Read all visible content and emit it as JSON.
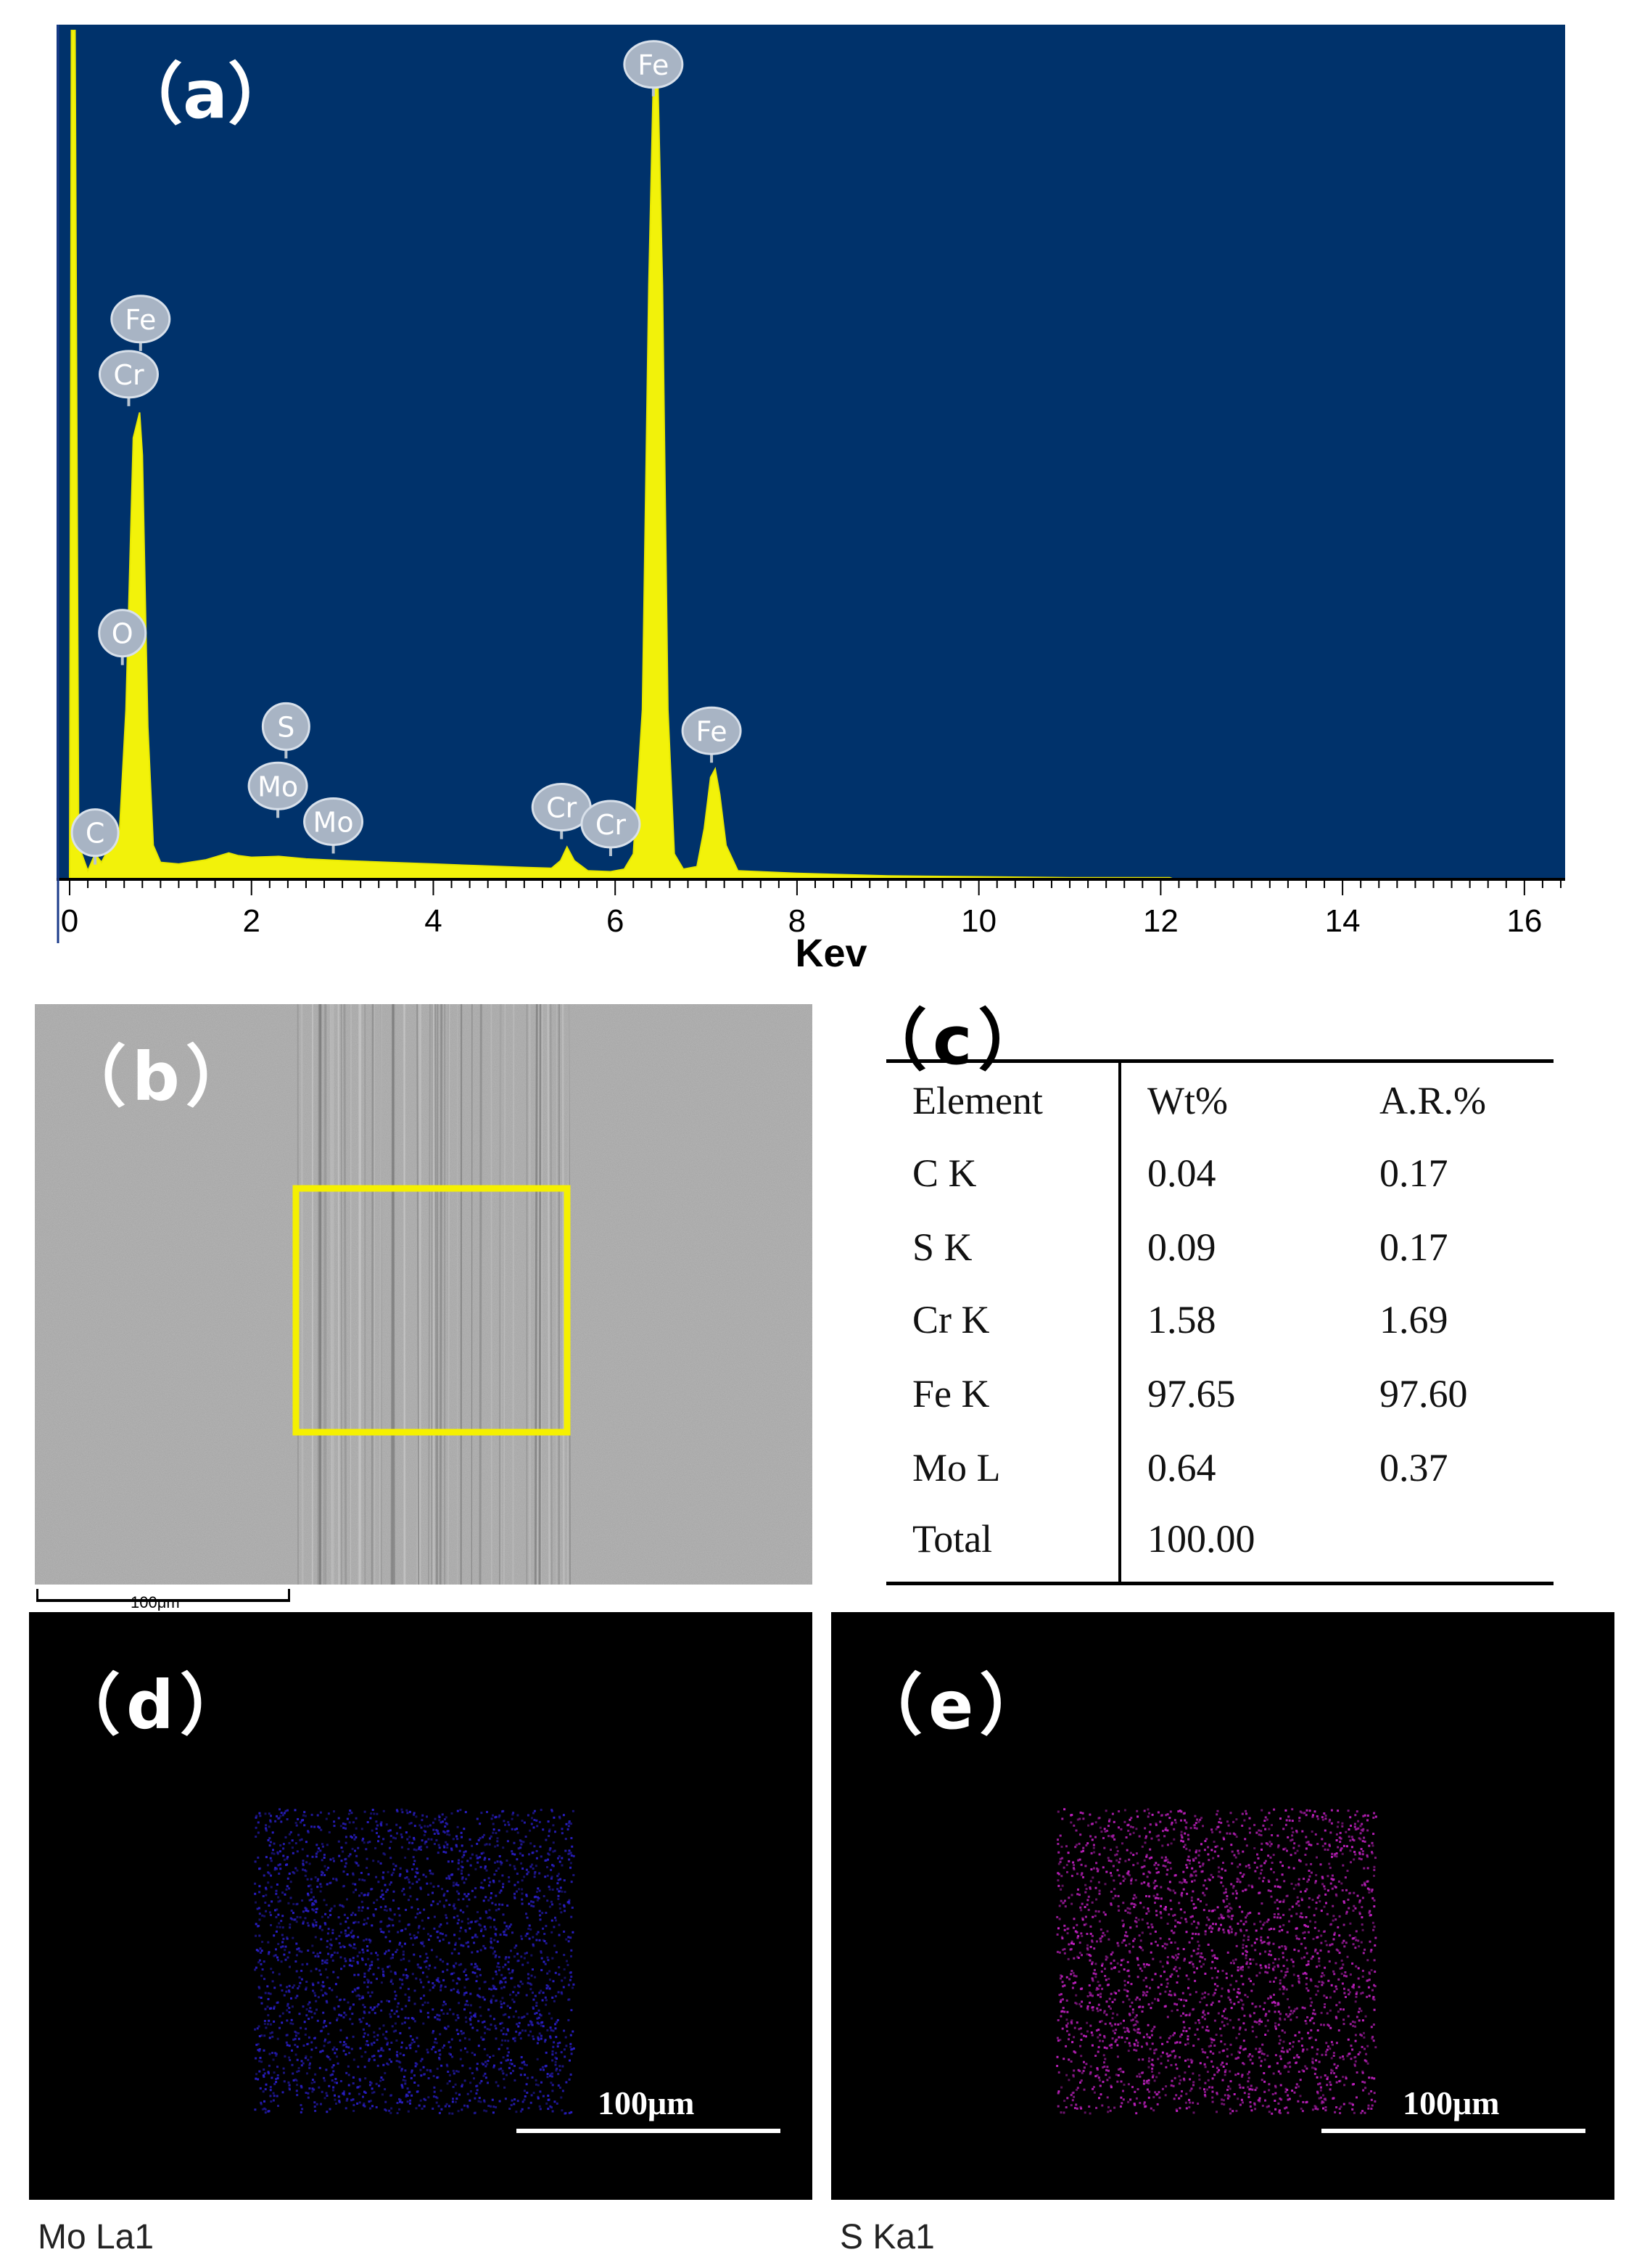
{
  "chart_data": {
    "type": "area",
    "panel_label": "（a）",
    "xlabel": "Kev",
    "ylabel": "",
    "xlim": [
      0,
      16.4
    ],
    "ylim": [
      0,
      100
    ],
    "x_ticks": [
      "0",
      "2",
      "4",
      "6",
      "8",
      "10",
      "12",
      "14",
      "16"
    ],
    "colors": {
      "background": "#00326b",
      "spectrum": "#f2f20a",
      "axis": "#ffffff"
    },
    "spectrum": [
      [
        0,
        0
      ],
      [
        0.02,
        100
      ],
      [
        0.06,
        100
      ],
      [
        0.1,
        4
      ],
      [
        0.2,
        1
      ],
      [
        0.28,
        3
      ],
      [
        0.35,
        2
      ],
      [
        0.45,
        4
      ],
      [
        0.55,
        6
      ],
      [
        0.62,
        20
      ],
      [
        0.7,
        52
      ],
      [
        0.77,
        55
      ],
      [
        0.8,
        50
      ],
      [
        0.86,
        18
      ],
      [
        0.92,
        4
      ],
      [
        1.0,
        2
      ],
      [
        1.2,
        1.8
      ],
      [
        1.5,
        2.3
      ],
      [
        1.75,
        3.1
      ],
      [
        1.85,
        2.8
      ],
      [
        2.0,
        2.6
      ],
      [
        2.3,
        2.7
      ],
      [
        2.6,
        2.4
      ],
      [
        3.0,
        2.2
      ],
      [
        3.5,
        2.0
      ],
      [
        4.0,
        1.8
      ],
      [
        4.5,
        1.6
      ],
      [
        5.0,
        1.4
      ],
      [
        5.3,
        1.3
      ],
      [
        5.4,
        2.2
      ],
      [
        5.47,
        3.8
      ],
      [
        5.55,
        2.2
      ],
      [
        5.7,
        1.0
      ],
      [
        5.95,
        0.9
      ],
      [
        6.1,
        1.2
      ],
      [
        6.2,
        3
      ],
      [
        6.3,
        20
      ],
      [
        6.37,
        70
      ],
      [
        6.42,
        94
      ],
      [
        6.47,
        94
      ],
      [
        6.52,
        70
      ],
      [
        6.58,
        20
      ],
      [
        6.65,
        3
      ],
      [
        6.75,
        1.2
      ],
      [
        6.9,
        1.5
      ],
      [
        6.98,
        6
      ],
      [
        7.05,
        12
      ],
      [
        7.1,
        13
      ],
      [
        7.15,
        10
      ],
      [
        7.22,
        4
      ],
      [
        7.35,
        1
      ],
      [
        8,
        0.7
      ],
      [
        9,
        0.4
      ],
      [
        10,
        0.3
      ],
      [
        11,
        0.2
      ],
      [
        12.1,
        0.2
      ],
      [
        12.15,
        0
      ],
      [
        16.4,
        0
      ]
    ],
    "peak_labels": [
      {
        "text": "Fe",
        "x": 6.42,
        "y": 96
      },
      {
        "text": "Fe",
        "x": 0.78,
        "y": 66
      },
      {
        "text": "Cr",
        "x": 0.65,
        "y": 59.5
      },
      {
        "text": "O",
        "x": 0.58,
        "y": 29
      },
      {
        "text": "S",
        "x": 2.38,
        "y": 18
      },
      {
        "text": "Mo",
        "x": 2.29,
        "y": 11
      },
      {
        "text": "Mo",
        "x": 2.9,
        "y": 6.8
      },
      {
        "text": "C",
        "x": 0.28,
        "y": 5.5
      },
      {
        "text": "Cr",
        "x": 5.41,
        "y": 8.5
      },
      {
        "text": "Cr",
        "x": 5.95,
        "y": 6.5
      },
      {
        "text": "Fe",
        "x": 7.06,
        "y": 17.5
      }
    ]
  },
  "panel_b": {
    "label": "（b）",
    "scalebar": "100μm"
  },
  "panel_c": {
    "label": "（c）",
    "headers": [
      "Element",
      "Wt%",
      "A.R.%"
    ],
    "rows": [
      [
        "C K",
        "0.04",
        "0.17"
      ],
      [
        "S K",
        "0.09",
        "0.17"
      ],
      [
        "Cr K",
        "1.58",
        "1.69"
      ],
      [
        "Fe K",
        "97.65",
        "97.60"
      ],
      [
        "Mo L",
        "0.64",
        "0.37"
      ],
      [
        "Total",
        "100.00",
        ""
      ]
    ]
  },
  "panel_d": {
    "label": "（d）",
    "scalebar": "100μm",
    "caption": "Mo La1",
    "dot_color": "#2a1ec8"
  },
  "panel_e": {
    "label": "（e）",
    "scalebar": "100μm",
    "caption": "S Ka1",
    "dot_color": "#c020c0"
  }
}
